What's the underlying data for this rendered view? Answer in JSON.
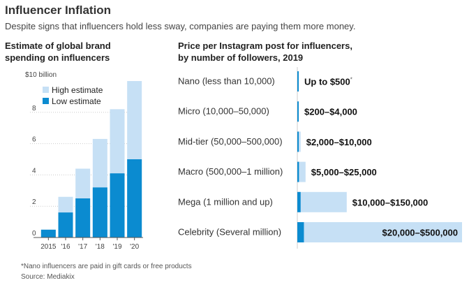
{
  "title": "Influencer Inflation",
  "subtitle": "Despite signs that influencers hold less sway, companies are paying them more money.",
  "colors": {
    "high": "#c6e0f5",
    "low": "#0b8bd0",
    "axis": "#555555",
    "grid": "#cccccc"
  },
  "chart_data": [
    {
      "type": "bar",
      "title_lines": [
        "Estimate of global brand",
        "spending on influencers"
      ],
      "categories": [
        "2015",
        "'16",
        "'17",
        "'18",
        "'19",
        "'20"
      ],
      "series": [
        {
          "name": "High estimate",
          "values": [
            0.5,
            2.6,
            4.4,
            6.3,
            8.2,
            10.0
          ]
        },
        {
          "name": "Low estimate",
          "values": [
            0.5,
            1.6,
            2.5,
            3.2,
            4.1,
            5.0
          ]
        }
      ],
      "y_ticks": [
        0,
        2,
        4,
        6,
        8
      ],
      "y_top_label": "$10 billion",
      "ylim": [
        0,
        10
      ]
    },
    {
      "type": "bar",
      "orientation": "horizontal",
      "title_lines": [
        "Price per Instagram post for influencers,",
        "by number of followers, 2019"
      ],
      "xlim": [
        0,
        500000
      ],
      "rows": [
        {
          "category": "Nano (less than 10,000)",
          "low": 0,
          "high": 500,
          "label": "Up to $500",
          "marker": "*"
        },
        {
          "category": "Micro (10,000–50,000)",
          "low": 200,
          "high": 4000,
          "label": "$200–$4,000"
        },
        {
          "category": "Mid-tier (50,000–500,000)",
          "low": 2000,
          "high": 10000,
          "label": "$2,000–$10,000"
        },
        {
          "category": "Macro (500,000–1 million)",
          "low": 5000,
          "high": 25000,
          "label": "$5,000–$25,000"
        },
        {
          "category": "Mega (1 million and up)",
          "low": 10000,
          "high": 150000,
          "label": "$10,000–$150,000"
        },
        {
          "category": "Celebrity (Several million)",
          "low": 20000,
          "high": 500000,
          "label": "$20,000–$500,000"
        }
      ]
    }
  ],
  "footnote": "*Nano influencers are paid in gift cards or free products",
  "source": "Source: Mediakix"
}
